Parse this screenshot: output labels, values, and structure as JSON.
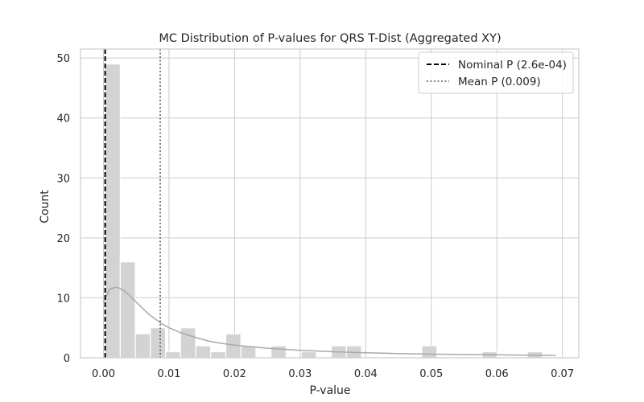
{
  "chart_data": {
    "type": "histogram",
    "title": "MC Distribution of P-values for QRS T-Dist (Aggregated XY)",
    "xlabel": "P-value",
    "ylabel": "Count",
    "xlim": [
      -0.0035,
      0.0725
    ],
    "ylim": [
      0,
      51.5
    ],
    "xticks": [
      0.0,
      0.01,
      0.02,
      0.03,
      0.04,
      0.05,
      0.06,
      0.07
    ],
    "xtick_labels": [
      "0.00",
      "0.01",
      "0.02",
      "0.03",
      "0.04",
      "0.05",
      "0.06",
      "0.07"
    ],
    "yticks": [
      0,
      10,
      20,
      30,
      40,
      50
    ],
    "ytick_labels": [
      "0",
      "10",
      "20",
      "30",
      "40",
      "50"
    ],
    "grid": true,
    "legend_position": "top-right",
    "bins": {
      "start": 0.00026,
      "width": 0.0023,
      "counts": [
        49,
        16,
        4,
        5,
        1,
        5,
        2,
        1,
        4,
        2,
        0,
        2,
        0,
        1,
        0,
        2,
        2,
        0,
        0,
        0,
        0,
        2,
        0,
        0,
        0,
        1,
        0,
        0,
        1
      ]
    },
    "kde": {
      "x": [
        0.0,
        0.001,
        0.002,
        0.003,
        0.004,
        0.005,
        0.006,
        0.007,
        0.008,
        0.009,
        0.01,
        0.012,
        0.014,
        0.016,
        0.018,
        0.02,
        0.025,
        0.03,
        0.035,
        0.04,
        0.045,
        0.05,
        0.055,
        0.06,
        0.065,
        0.069
      ],
      "y": [
        9.3,
        11.5,
        11.8,
        11.3,
        10.4,
        9.3,
        8.2,
        7.2,
        6.4,
        5.6,
        5.0,
        4.1,
        3.4,
        2.8,
        2.4,
        2.1,
        1.6,
        1.25,
        1.0,
        0.85,
        0.7,
        0.6,
        0.55,
        0.5,
        0.42,
        0.4
      ]
    },
    "reference_lines": [
      {
        "name": "Nominal P (2.6e-04)",
        "x": 0.00026,
        "style": "dashed",
        "color": "#000000"
      },
      {
        "name": "Mean P (0.009)",
        "x": 0.00866,
        "style": "dotted",
        "color": "#555555"
      }
    ],
    "colors": {
      "bars": "#d3d3d3",
      "kde": "#a9a9a9",
      "grid": "#cccccc",
      "frame": "#cccccc"
    }
  }
}
